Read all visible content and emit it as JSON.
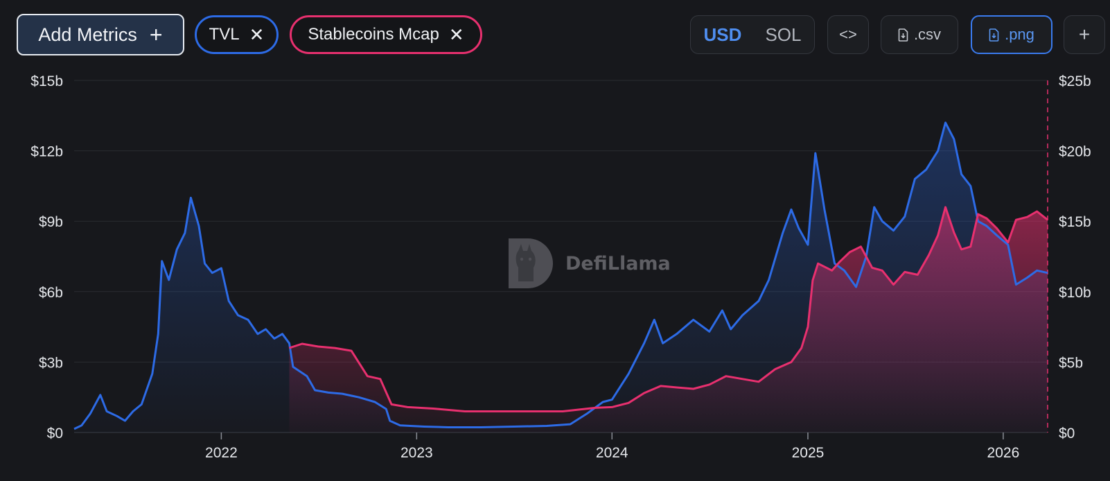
{
  "toolbar": {
    "add_metrics_label": "Add Metrics",
    "add_metrics_plus": "+",
    "chips": [
      {
        "label": "TVL",
        "close": "✕",
        "color": "#2d6be6"
      },
      {
        "label": "Stablecoins Mcap",
        "close": "✕",
        "color": "#e8306f"
      }
    ],
    "currency": {
      "options": [
        "USD",
        "SOL"
      ],
      "selected": "USD"
    },
    "embed_label": "<>",
    "csv_label": ".csv",
    "png_label": ".png",
    "more_label": "+"
  },
  "watermark": {
    "text": "DefiLlama",
    "icon": "llama-logo-icon"
  },
  "chart_data": {
    "type": "area",
    "x_ticks": [
      "2022",
      "2023",
      "2024",
      "2025",
      "2026"
    ],
    "x_range": [
      "2021-04-01",
      "2026-03-25"
    ],
    "y_left": {
      "ticks": [
        "$0",
        "$3b",
        "$6b",
        "$9b",
        "$12b",
        "$15b"
      ],
      "range": [
        0,
        15
      ],
      "unit": "billion USD"
    },
    "y_right": {
      "ticks": [
        "$0",
        "$5b",
        "$10b",
        "$15b",
        "$20b",
        "$25b"
      ],
      "range": [
        0,
        25
      ],
      "unit": "billion USD"
    },
    "grid": true,
    "series": [
      {
        "name": "TVL",
        "axis": "left",
        "color": "#2d6be6",
        "points": [
          [
            "2021-04-01",
            0.15
          ],
          [
            "2021-04-15",
            0.3
          ],
          [
            "2021-05-01",
            0.8
          ],
          [
            "2021-05-20",
            1.6
          ],
          [
            "2021-06-01",
            0.9
          ],
          [
            "2021-06-20",
            0.7
          ],
          [
            "2021-07-05",
            0.5
          ],
          [
            "2021-07-20",
            0.9
          ],
          [
            "2021-08-05",
            1.2
          ],
          [
            "2021-08-25",
            2.5
          ],
          [
            "2021-09-05",
            4.2
          ],
          [
            "2021-09-12",
            7.3
          ],
          [
            "2021-09-25",
            6.5
          ],
          [
            "2021-10-10",
            7.8
          ],
          [
            "2021-10-25",
            8.5
          ],
          [
            "2021-11-05",
            10.0
          ],
          [
            "2021-11-20",
            8.8
          ],
          [
            "2021-12-01",
            7.2
          ],
          [
            "2021-12-15",
            6.8
          ],
          [
            "2022-01-01",
            7.0
          ],
          [
            "2022-01-15",
            5.6
          ],
          [
            "2022-02-01",
            5.0
          ],
          [
            "2022-02-20",
            4.8
          ],
          [
            "2022-03-10",
            4.2
          ],
          [
            "2022-03-25",
            4.4
          ],
          [
            "2022-04-10",
            4.0
          ],
          [
            "2022-04-25",
            4.2
          ],
          [
            "2022-05-08",
            3.8
          ],
          [
            "2022-05-15",
            2.8
          ],
          [
            "2022-06-10",
            2.4
          ],
          [
            "2022-06-25",
            1.8
          ],
          [
            "2022-07-20",
            1.7
          ],
          [
            "2022-08-15",
            1.65
          ],
          [
            "2022-09-15",
            1.5
          ],
          [
            "2022-10-15",
            1.3
          ],
          [
            "2022-11-05",
            1.0
          ],
          [
            "2022-11-12",
            0.5
          ],
          [
            "2022-12-01",
            0.3
          ],
          [
            "2023-01-15",
            0.25
          ],
          [
            "2023-03-01",
            0.22
          ],
          [
            "2023-05-01",
            0.22
          ],
          [
            "2023-07-01",
            0.25
          ],
          [
            "2023-09-01",
            0.28
          ],
          [
            "2023-10-15",
            0.35
          ],
          [
            "2023-11-15",
            0.8
          ],
          [
            "2023-12-15",
            1.3
          ],
          [
            "2024-01-01",
            1.4
          ],
          [
            "2024-02-01",
            2.5
          ],
          [
            "2024-03-01",
            3.8
          ],
          [
            "2024-03-20",
            4.8
          ],
          [
            "2024-04-05",
            3.8
          ],
          [
            "2024-05-01",
            4.2
          ],
          [
            "2024-06-01",
            4.8
          ],
          [
            "2024-07-01",
            4.3
          ],
          [
            "2024-07-25",
            5.2
          ],
          [
            "2024-08-10",
            4.4
          ],
          [
            "2024-09-01",
            5.0
          ],
          [
            "2024-10-01",
            5.6
          ],
          [
            "2024-10-20",
            6.5
          ],
          [
            "2024-11-15",
            8.5
          ],
          [
            "2024-12-01",
            9.5
          ],
          [
            "2024-12-15",
            8.7
          ],
          [
            "2025-01-01",
            8.0
          ],
          [
            "2025-01-15",
            11.9
          ],
          [
            "2025-02-01",
            9.5
          ],
          [
            "2025-02-20",
            7.2
          ],
          [
            "2025-03-10",
            6.9
          ],
          [
            "2025-04-01",
            6.2
          ],
          [
            "2025-04-20",
            7.5
          ],
          [
            "2025-05-05",
            9.6
          ],
          [
            "2025-05-20",
            9.0
          ],
          [
            "2025-06-10",
            8.6
          ],
          [
            "2025-07-01",
            9.2
          ],
          [
            "2025-07-20",
            10.8
          ],
          [
            "2025-08-10",
            11.2
          ],
          [
            "2025-09-01",
            12.0
          ],
          [
            "2025-09-15",
            13.2
          ],
          [
            "2025-10-01",
            12.5
          ],
          [
            "2025-10-15",
            11.0
          ],
          [
            "2025-11-01",
            10.5
          ],
          [
            "2025-11-15",
            9.0
          ],
          [
            "2025-12-01",
            8.8
          ],
          [
            "2025-12-20",
            8.4
          ],
          [
            "2026-01-10",
            8.0
          ],
          [
            "2026-01-25",
            6.3
          ],
          [
            "2026-02-15",
            6.6
          ],
          [
            "2026-03-05",
            6.9
          ],
          [
            "2026-03-25",
            6.8
          ]
        ]
      },
      {
        "name": "Stablecoins Mcap",
        "axis": "right",
        "color": "#e8306f",
        "points": [
          [
            "2022-05-08",
            6.0
          ],
          [
            "2022-06-01",
            6.3
          ],
          [
            "2022-07-01",
            6.1
          ],
          [
            "2022-08-01",
            6.0
          ],
          [
            "2022-09-01",
            5.8
          ],
          [
            "2022-10-01",
            4.0
          ],
          [
            "2022-10-25",
            3.8
          ],
          [
            "2022-11-15",
            2.0
          ],
          [
            "2022-12-15",
            1.8
          ],
          [
            "2023-02-01",
            1.7
          ],
          [
            "2023-04-01",
            1.5
          ],
          [
            "2023-06-01",
            1.5
          ],
          [
            "2023-08-01",
            1.5
          ],
          [
            "2023-10-01",
            1.5
          ],
          [
            "2023-12-01",
            1.75
          ],
          [
            "2024-01-01",
            1.8
          ],
          [
            "2024-02-01",
            2.1
          ],
          [
            "2024-03-01",
            2.8
          ],
          [
            "2024-04-01",
            3.3
          ],
          [
            "2024-05-01",
            3.2
          ],
          [
            "2024-06-01",
            3.1
          ],
          [
            "2024-07-01",
            3.4
          ],
          [
            "2024-08-01",
            4.0
          ],
          [
            "2024-09-01",
            3.8
          ],
          [
            "2024-10-01",
            3.6
          ],
          [
            "2024-11-01",
            4.5
          ],
          [
            "2024-12-01",
            5.0
          ],
          [
            "2024-12-20",
            6.0
          ],
          [
            "2025-01-01",
            7.5
          ],
          [
            "2025-01-10",
            10.8
          ],
          [
            "2025-01-20",
            12.0
          ],
          [
            "2025-02-15",
            11.5
          ],
          [
            "2025-03-01",
            12.1
          ],
          [
            "2025-03-20",
            12.8
          ],
          [
            "2025-04-10",
            13.2
          ],
          [
            "2025-05-01",
            11.7
          ],
          [
            "2025-05-20",
            11.5
          ],
          [
            "2025-06-10",
            10.5
          ],
          [
            "2025-07-01",
            11.4
          ],
          [
            "2025-07-25",
            11.2
          ],
          [
            "2025-08-15",
            12.6
          ],
          [
            "2025-09-01",
            14.0
          ],
          [
            "2025-09-15",
            16.0
          ],
          [
            "2025-10-01",
            14.2
          ],
          [
            "2025-10-15",
            13.0
          ],
          [
            "2025-11-01",
            13.2
          ],
          [
            "2025-11-15",
            15.5
          ],
          [
            "2025-12-01",
            15.2
          ],
          [
            "2025-12-20",
            14.5
          ],
          [
            "2026-01-10",
            13.5
          ],
          [
            "2026-01-25",
            15.1
          ],
          [
            "2026-02-15",
            15.3
          ],
          [
            "2026-03-05",
            15.7
          ],
          [
            "2026-03-25",
            15.1
          ]
        ]
      }
    ]
  }
}
